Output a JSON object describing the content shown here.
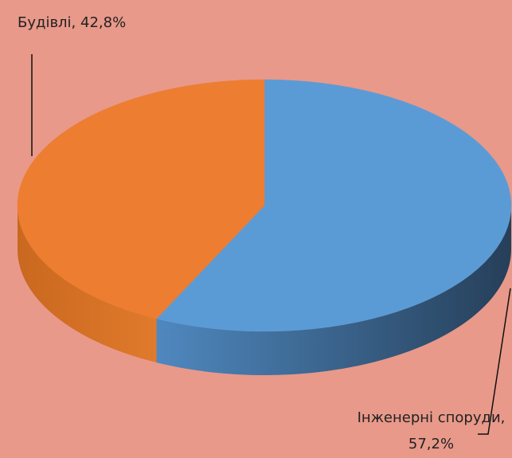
{
  "chart_data": {
    "type": "pie",
    "categories": [
      "Будівлі",
      "Інженерні споруди"
    ],
    "values": [
      42.8,
      57.2
    ],
    "value_labels": [
      "Будівлі, 42,8%",
      "Інженерні споруди, 57,2%"
    ],
    "colors": [
      "#ED7D31",
      "#5B9BD5"
    ],
    "start": "top",
    "direction": "counterclockwise"
  }
}
